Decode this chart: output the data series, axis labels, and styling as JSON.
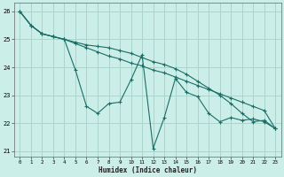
{
  "xlabel": "Humidex (Indice chaleur)",
  "xlim": [
    -0.5,
    23.5
  ],
  "ylim": [
    20.8,
    26.3
  ],
  "yticks": [
    21,
    22,
    23,
    24,
    25,
    26
  ],
  "xticks": [
    0,
    1,
    2,
    3,
    4,
    5,
    6,
    7,
    8,
    9,
    10,
    11,
    12,
    13,
    14,
    15,
    16,
    17,
    18,
    19,
    20,
    21,
    22,
    23
  ],
  "bg_color": "#cceee8",
  "grid_color": "#aad4cc",
  "line_color": "#1a6e66",
  "line1_y": [
    26.0,
    25.5,
    25.2,
    25.1,
    25.0,
    24.85,
    24.7,
    24.55,
    24.4,
    24.3,
    24.15,
    24.05,
    23.9,
    23.8,
    23.65,
    23.5,
    23.35,
    23.2,
    23.05,
    22.9,
    22.75,
    22.6,
    22.45,
    21.8
  ],
  "line2_y": [
    26.0,
    25.5,
    25.2,
    25.1,
    25.0,
    23.9,
    22.6,
    22.35,
    22.7,
    22.75,
    23.55,
    24.45,
    21.1,
    22.2,
    23.6,
    23.1,
    22.95,
    22.35,
    22.05,
    22.2,
    22.1,
    22.15,
    22.05,
    21.8
  ],
  "line3_y": [
    26.0,
    25.5,
    25.2,
    25.1,
    25.0,
    24.9,
    24.8,
    24.75,
    24.7,
    24.6,
    24.5,
    24.35,
    24.2,
    24.1,
    23.95,
    23.75,
    23.5,
    23.25,
    23.0,
    22.7,
    22.35,
    22.05,
    22.1,
    21.8
  ]
}
